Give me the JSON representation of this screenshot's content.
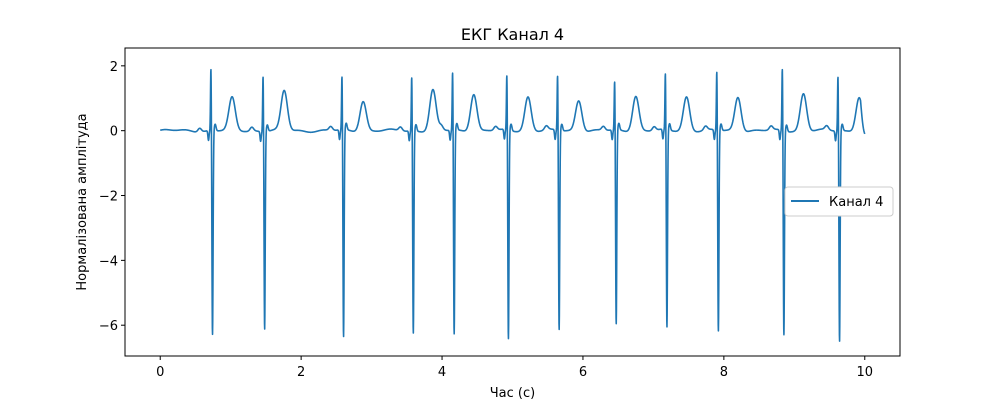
{
  "chart_data": {
    "type": "line",
    "title": "ЕКГ Канал 4",
    "xlabel": "Час (с)",
    "ylabel": "Нормалізована амплітуда",
    "xlim": [
      -0.5,
      10.5
    ],
    "ylim": [
      -6.95,
      2.55
    ],
    "xticks": [
      0,
      2,
      4,
      6,
      8,
      10
    ],
    "yticks": [
      2,
      0,
      -2,
      -4,
      -6
    ],
    "ytick_labels": [
      "2",
      "0",
      "−2",
      "−4",
      "−6"
    ],
    "grid": false,
    "legend_position": "right",
    "series": [
      {
        "name": "Канал 4",
        "color": "#1f77b4",
        "beats": [
          {
            "t": 0.72,
            "r": 2.02,
            "s": -6.3,
            "tw": 1.0
          },
          {
            "t": 1.46,
            "r": 1.82,
            "s": -6.1,
            "tw": 1.22
          },
          {
            "t": 2.58,
            "r": 1.76,
            "s": -6.4,
            "tw": 0.92
          },
          {
            "t": 3.57,
            "r": 1.77,
            "s": -6.25,
            "tw": 1.25
          },
          {
            "t": 4.15,
            "r": 1.9,
            "s": -6.3,
            "tw": 1.15
          },
          {
            "t": 4.92,
            "r": 1.8,
            "s": -6.45,
            "tw": 1.05
          },
          {
            "t": 5.64,
            "r": 1.8,
            "s": -6.15,
            "tw": 0.95
          },
          {
            "t": 6.45,
            "r": 1.6,
            "s": -6.0,
            "tw": 1.08
          },
          {
            "t": 7.17,
            "r": 1.84,
            "s": -6.1,
            "tw": 1.05
          },
          {
            "t": 7.9,
            "r": 1.92,
            "s": -6.2,
            "tw": 1.05
          },
          {
            "t": 8.83,
            "r": 2.02,
            "s": -6.3,
            "tw": 1.15
          },
          {
            "t": 9.62,
            "r": 1.8,
            "s": -6.5,
            "tw": 1.05
          }
        ],
        "x_end": 10.0,
        "t_end": -0.1
      }
    ]
  }
}
